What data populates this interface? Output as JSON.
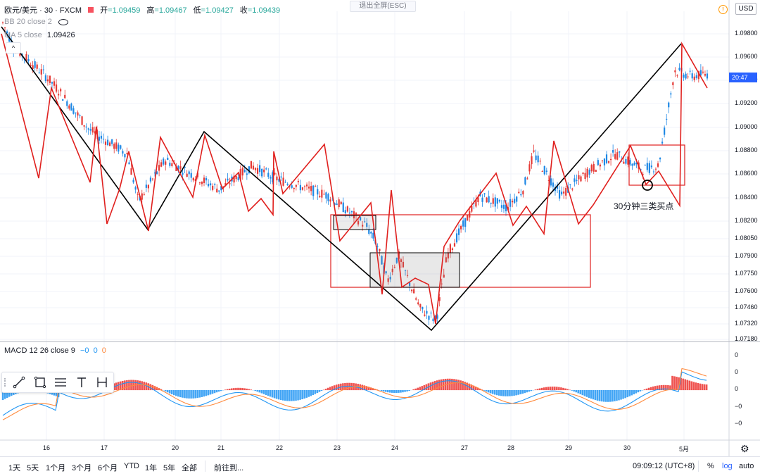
{
  "header": {
    "symbol": "欧元/美元 · 30 · FXCM",
    "ohlc": [
      {
        "key": "开",
        "value": "=1.09459"
      },
      {
        "key": "高",
        "value": "=1.09467"
      },
      {
        "key": "低",
        "value": "=1.09427"
      },
      {
        "key": "收",
        "value": "=1.09439"
      }
    ],
    "exit_fullscreen": "退出全屏(ESC)",
    "currency": "USD"
  },
  "indicators": {
    "bb": "BB 20 close 2",
    "ma": "MA 5 close",
    "ma_value": "1.09426",
    "macd": "MACD 12 26 close 9",
    "macd_values": [
      "−0",
      "0",
      "0"
    ]
  },
  "price_axis": {
    "ticks": [
      "1.09800",
      "1.09600",
      "1.09400",
      "1.09200",
      "1.09000",
      "1.08800",
      "1.08600",
      "1.08400",
      "1.08200",
      "1.08050",
      "1.07900",
      "1.07750",
      "1.07600",
      "1.07460",
      "1.07320",
      "1.07180"
    ],
    "current_tag": "20:47"
  },
  "macd_axis": {
    "ticks": [
      "0",
      "0",
      "0",
      "−0",
      "−0"
    ]
  },
  "time_axis": {
    "ticks": [
      "16",
      "17",
      "20",
      "21",
      "22",
      "23",
      "24",
      "27",
      "28",
      "29",
      "30",
      "5月"
    ]
  },
  "annotation": "30分钟三类买点",
  "bottom_bar": {
    "ranges": [
      "1天",
      "5天",
      "1个月",
      "3个月",
      "6个月",
      "YTD",
      "1年",
      "5年",
      "全部"
    ],
    "goto": "前往到...",
    "clock": "09:09:12 (UTC+8)",
    "percent": "%",
    "log": "log",
    "auto": "auto"
  },
  "colors": {
    "up": "#e53935",
    "down": "#1e88e5",
    "zigzag_red": "#e0201e",
    "zigzag_black": "#000000",
    "accent": "#2962ff",
    "macd_pos": "#ef5350",
    "macd_neg": "#42a5f5",
    "dif": "#2196f3",
    "dea": "#ff8a3d"
  },
  "chart_data": {
    "type": "line",
    "title": "",
    "xlabel": "",
    "ylabel": "",
    "ylim": [
      1.0718,
      1.099
    ],
    "x": [
      "16",
      "17",
      "20",
      "21",
      "22",
      "23",
      "24",
      "27",
      "28",
      "29",
      "30",
      "5月"
    ],
    "series": [
      {
        "name": "",
        "values": [
          [
            0,
            1.0985
          ],
          [
            0.2,
            1.0965
          ],
          [
            0.8,
            1.094
          ],
          [
            1.0,
            1.093
          ],
          [
            1.6,
            1.0895
          ],
          [
            2.3,
            1.0875
          ],
          [
            2.5,
            1.0835
          ],
          [
            3.0,
            1.087
          ],
          [
            4.0,
            1.0845
          ],
          [
            4.6,
            1.0865
          ],
          [
            5.0,
            1.0855
          ],
          [
            6.0,
            1.084
          ],
          [
            6.7,
            1.0815
          ],
          [
            6.9,
            1.08
          ],
          [
            7.1,
            1.0768
          ],
          [
            7.3,
            1.079
          ],
          [
            7.7,
            1.0745
          ],
          [
            8.0,
            1.0735
          ],
          [
            8.2,
            1.079
          ],
          [
            8.8,
            1.084
          ],
          [
            9.3,
            1.083
          ],
          [
            9.6,
            1.0845
          ],
          [
            9.8,
            1.0875
          ],
          [
            10.3,
            1.084
          ],
          [
            10.8,
            1.086
          ],
          [
            11.3,
            1.0875
          ],
          [
            11.8,
            1.0862
          ],
          [
            12.1,
            1.0865
          ],
          [
            12.4,
            1.0945
          ],
          [
            12.7,
            1.094
          ],
          [
            13.0,
            1.0942
          ]
        ]
      }
    ]
  }
}
